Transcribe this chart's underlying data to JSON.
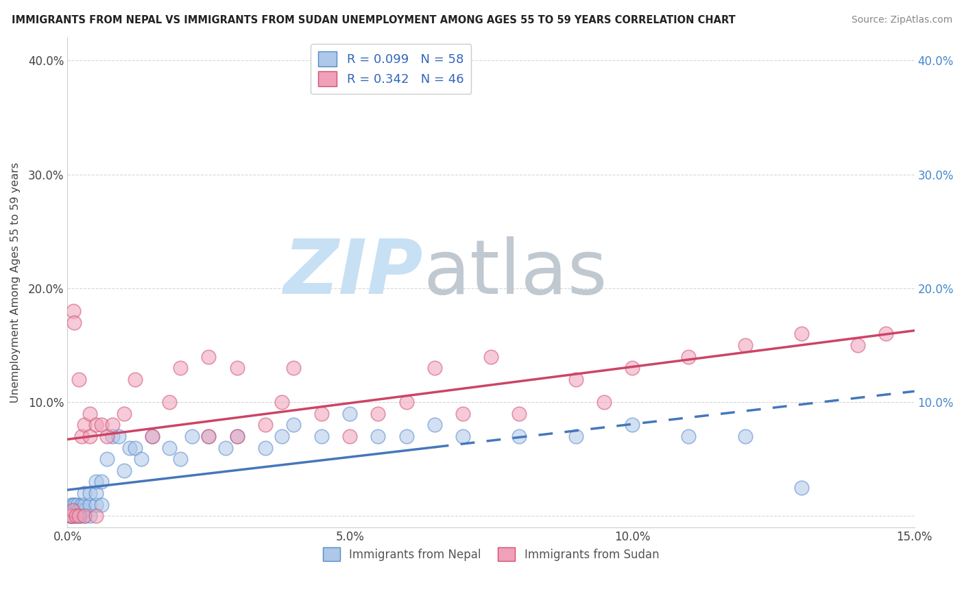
{
  "title": "IMMIGRANTS FROM NEPAL VS IMMIGRANTS FROM SUDAN UNEMPLOYMENT AMONG AGES 55 TO 59 YEARS CORRELATION CHART",
  "source": "Source: ZipAtlas.com",
  "ylabel": "Unemployment Among Ages 55 to 59 years",
  "xlim": [
    0.0,
    0.15
  ],
  "ylim": [
    -0.01,
    0.42
  ],
  "nepal_R": 0.099,
  "nepal_N": 58,
  "sudan_R": 0.342,
  "sudan_N": 46,
  "nepal_face_color": "#adc8e8",
  "nepal_edge_color": "#5588cc",
  "sudan_face_color": "#f0a0b8",
  "sudan_edge_color": "#d05070",
  "nepal_line_color": "#4477bb",
  "sudan_line_color": "#cc4466",
  "legend_label_nepal": "Immigrants from Nepal",
  "legend_label_sudan": "Immigrants from Sudan",
  "nepal_x": [
    0.0005,
    0.0006,
    0.0007,
    0.0008,
    0.0009,
    0.001,
    0.001,
    0.0012,
    0.0013,
    0.0015,
    0.0016,
    0.0018,
    0.002,
    0.002,
    0.0022,
    0.0025,
    0.0025,
    0.003,
    0.003,
    0.003,
    0.003,
    0.004,
    0.004,
    0.004,
    0.005,
    0.005,
    0.005,
    0.006,
    0.006,
    0.007,
    0.008,
    0.009,
    0.01,
    0.011,
    0.012,
    0.013,
    0.015,
    0.018,
    0.02,
    0.022,
    0.025,
    0.028,
    0.03,
    0.035,
    0.038,
    0.04,
    0.045,
    0.05,
    0.055,
    0.06,
    0.065,
    0.07,
    0.08,
    0.09,
    0.1,
    0.11,
    0.12,
    0.13
  ],
  "nepal_y": [
    0.0,
    0.0,
    0.01,
    0.0,
    0.005,
    0.01,
    0.0,
    0.005,
    0.01,
    0.0,
    0.005,
    0.01,
    0.0,
    0.005,
    0.0,
    0.005,
    0.01,
    0.0,
    0.005,
    0.01,
    0.02,
    0.0,
    0.01,
    0.02,
    0.01,
    0.02,
    0.03,
    0.01,
    0.03,
    0.05,
    0.07,
    0.07,
    0.04,
    0.06,
    0.06,
    0.05,
    0.07,
    0.06,
    0.05,
    0.07,
    0.07,
    0.06,
    0.07,
    0.06,
    0.07,
    0.08,
    0.07,
    0.09,
    0.07,
    0.07,
    0.08,
    0.07,
    0.07,
    0.07,
    0.08,
    0.07,
    0.07,
    0.025
  ],
  "sudan_x": [
    0.0005,
    0.0007,
    0.0009,
    0.001,
    0.0012,
    0.0015,
    0.002,
    0.002,
    0.0025,
    0.003,
    0.003,
    0.004,
    0.004,
    0.005,
    0.005,
    0.006,
    0.007,
    0.008,
    0.01,
    0.012,
    0.015,
    0.018,
    0.02,
    0.025,
    0.025,
    0.03,
    0.03,
    0.035,
    0.038,
    0.04,
    0.045,
    0.05,
    0.055,
    0.06,
    0.065,
    0.07,
    0.075,
    0.08,
    0.09,
    0.095,
    0.1,
    0.11,
    0.12,
    0.13,
    0.14,
    0.145
  ],
  "sudan_y": [
    0.0,
    0.0,
    0.005,
    0.18,
    0.17,
    0.0,
    0.12,
    0.0,
    0.07,
    0.08,
    0.0,
    0.07,
    0.09,
    0.08,
    0.0,
    0.08,
    0.07,
    0.08,
    0.09,
    0.12,
    0.07,
    0.1,
    0.13,
    0.07,
    0.14,
    0.07,
    0.13,
    0.08,
    0.1,
    0.13,
    0.09,
    0.07,
    0.09,
    0.1,
    0.13,
    0.09,
    0.14,
    0.09,
    0.12,
    0.1,
    0.13,
    0.14,
    0.15,
    0.16,
    0.15,
    0.16
  ]
}
